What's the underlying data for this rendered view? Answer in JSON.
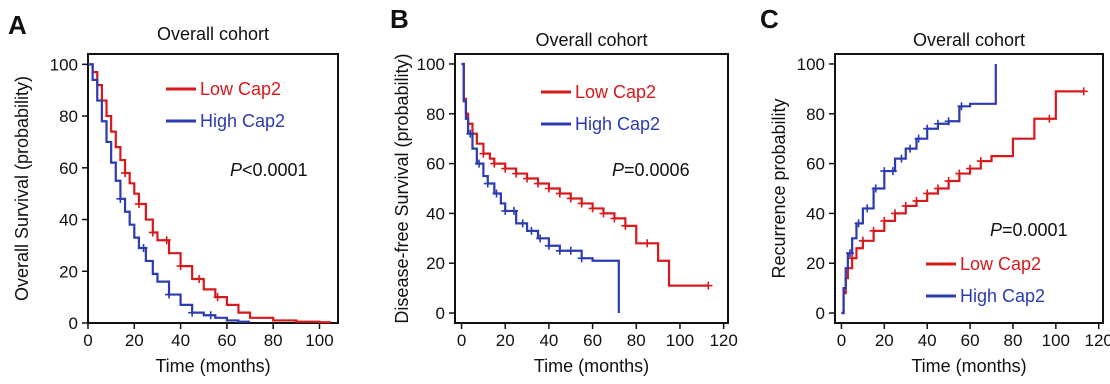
{
  "figure": {
    "panels": [
      "A",
      "B",
      "C"
    ]
  },
  "colors": {
    "low": "#d7191c",
    "high": "#2b3bb0"
  },
  "chart_data": [
    {
      "panel": "A",
      "type": "line",
      "title": "Overall cohort",
      "xlabel": "Time (months)",
      "ylabel": "Overall Survival (probability)",
      "xlim": [
        0,
        108
      ],
      "ylim": [
        0,
        104
      ],
      "xticks": [
        0,
        20,
        40,
        60,
        80,
        100
      ],
      "yticks": [
        0,
        20,
        40,
        60,
        80,
        100
      ],
      "annotation": {
        "prefix": "P",
        "text": "<0.0001"
      },
      "legend": "top-right",
      "series": [
        {
          "name": "Low Cap2",
          "color": "#d7191c",
          "x": [
            0,
            2,
            4,
            6,
            8,
            10,
            12,
            14,
            16,
            18,
            20,
            22,
            25,
            28,
            30,
            35,
            40,
            45,
            50,
            55,
            60,
            65,
            70,
            80,
            90,
            100,
            105
          ],
          "y": [
            100,
            97,
            92,
            86,
            80,
            74,
            68,
            63,
            58,
            54,
            50,
            46,
            40,
            35,
            32,
            27,
            22,
            17,
            13,
            10,
            7,
            4,
            2,
            1,
            0.5,
            0.3,
            0.3
          ],
          "censor_x": [
            16,
            22,
            28,
            34,
            40,
            48,
            56
          ]
        },
        {
          "name": "High Cap2",
          "color": "#2b3bb0",
          "x": [
            0,
            2,
            4,
            6,
            8,
            10,
            12,
            14,
            16,
            18,
            20,
            22,
            25,
            28,
            30,
            35,
            40,
            45,
            50,
            55,
            60,
            65,
            70
          ],
          "y": [
            100,
            94,
            86,
            78,
            70,
            62,
            55,
            48,
            43,
            38,
            33,
            29,
            24,
            19,
            16,
            11,
            7,
            4,
            3,
            2,
            1,
            0.5,
            0.5
          ],
          "censor_x": [
            14,
            24,
            35,
            45,
            53
          ]
        }
      ]
    },
    {
      "panel": "B",
      "type": "line",
      "title": "Overall cohort",
      "xlabel": "Time (months)",
      "ylabel": "Disease-free Survival (probability)",
      "xlim": [
        -3,
        122
      ],
      "ylim": [
        -4,
        104
      ],
      "xticks": [
        0,
        20,
        40,
        60,
        80,
        100,
        120
      ],
      "yticks": [
        0,
        20,
        40,
        60,
        80,
        100
      ],
      "annotation": {
        "prefix": "P",
        "text": "=0.0006"
      },
      "legend": "top-right",
      "series": [
        {
          "name": "Low Cap2",
          "color": "#d7191c",
          "x": [
            0,
            1,
            2,
            3,
            5,
            7,
            10,
            13,
            15,
            20,
            25,
            30,
            35,
            40,
            45,
            50,
            55,
            60,
            65,
            70,
            75,
            80,
            85,
            90,
            95,
            100,
            105,
            110,
            113
          ],
          "y": [
            100,
            86,
            80,
            76,
            72,
            68,
            64,
            62,
            60,
            58,
            56,
            54,
            52,
            50,
            48,
            46,
            44,
            42,
            40,
            38,
            35,
            28,
            28,
            21,
            11,
            11,
            11,
            11,
            11
          ],
          "censor_x": [
            5,
            10,
            15,
            20,
            25,
            30,
            35,
            40,
            45,
            50,
            55,
            60,
            65,
            70,
            75,
            85,
            113
          ]
        },
        {
          "name": "High Cap2",
          "color": "#2b3bb0",
          "x": [
            0,
            1,
            2,
            3,
            5,
            7,
            10,
            12,
            15,
            18,
            20,
            25,
            30,
            35,
            40,
            45,
            50,
            55,
            60,
            65,
            70,
            72
          ],
          "y": [
            100,
            85,
            78,
            72,
            66,
            60,
            55,
            52,
            48,
            44,
            41,
            36,
            33,
            30,
            27,
            25,
            25,
            22,
            21,
            21,
            21,
            0
          ],
          "censor_x": [
            4,
            8,
            12,
            16,
            20,
            24,
            28,
            32,
            36,
            40,
            45,
            50,
            55
          ]
        }
      ]
    },
    {
      "panel": "C",
      "type": "line",
      "title": "Overall cohort",
      "xlabel": "Time (months)",
      "ylabel": "Recurrence probability",
      "xlim": [
        -3,
        122
      ],
      "ylim": [
        -4,
        104
      ],
      "xticks": [
        0,
        20,
        40,
        60,
        80,
        100,
        120
      ],
      "yticks": [
        0,
        20,
        40,
        60,
        80,
        100
      ],
      "annotation": {
        "prefix": "P",
        "text": "=0.0001"
      },
      "legend": "bottom-right",
      "series": [
        {
          "name": "Low Cap2",
          "color": "#d7191c",
          "x": [
            0,
            1,
            2,
            3,
            5,
            7,
            10,
            15,
            20,
            25,
            30,
            35,
            40,
            45,
            50,
            55,
            60,
            65,
            70,
            75,
            80,
            85,
            90,
            95,
            100,
            113
          ],
          "y": [
            0,
            8,
            14,
            18,
            22,
            26,
            29,
            33,
            37,
            40,
            43,
            45,
            48,
            50,
            53,
            56,
            58,
            61,
            63,
            63,
            70,
            70,
            78,
            78,
            89,
            89
          ],
          "censor_x": [
            5,
            10,
            15,
            20,
            25,
            30,
            35,
            40,
            45,
            50,
            55,
            60,
            65,
            97,
            113
          ]
        },
        {
          "name": "High Cap2",
          "color": "#2b3bb0",
          "x": [
            0,
            1,
            2,
            3,
            5,
            7,
            10,
            15,
            20,
            25,
            30,
            35,
            40,
            45,
            50,
            55,
            60,
            65,
            70,
            72
          ],
          "y": [
            0,
            10,
            18,
            24,
            30,
            36,
            42,
            50,
            57,
            62,
            66,
            70,
            74,
            76,
            77,
            83,
            84,
            84,
            84,
            100
          ],
          "censor_x": [
            4,
            8,
            12,
            16,
            20,
            24,
            28,
            32,
            36,
            40,
            45,
            50,
            56
          ]
        }
      ]
    }
  ]
}
